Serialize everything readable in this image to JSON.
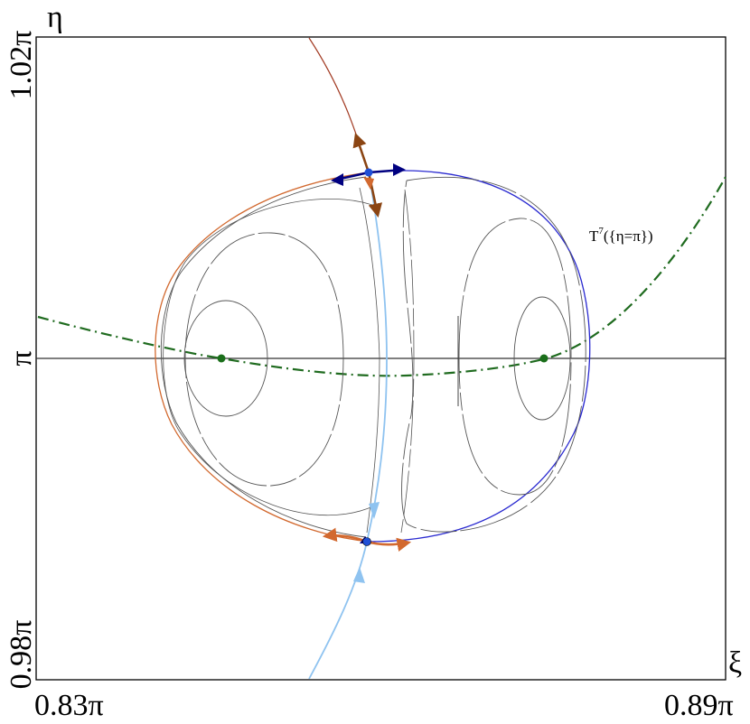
{
  "axes": {
    "y_symbol": "η",
    "x_symbol": "ξ",
    "y_tick_top": "1.02π",
    "y_tick_mid": "π",
    "y_tick_bottom": "0.98π",
    "x_tick_left": "0.83π",
    "x_tick_right": "0.89π"
  },
  "annotation": {
    "curve_label_T": "T",
    "curve_label_sup": "7",
    "curve_label_rest": "({η=π})"
  },
  "colors": {
    "frame": "#000000",
    "level_curves": "#555555",
    "curve_T7": "#1f6b1f",
    "fixed_points": "#1a6e1a",
    "saddle_points": "#1f4fd6",
    "manifold_blue": "#2a2ad0",
    "manifold_light_blue": "#8fc3f0",
    "manifold_orange": "#d2692f",
    "manifold_brown": "#8b4513",
    "manifold_dark_red": "#a23a22",
    "arrow_navy": "#000080"
  },
  "icons": {
    "fixed_point_marker": "filled-circle",
    "saddle_marker": "filled-circle",
    "direction_marker": "arrowhead"
  }
}
